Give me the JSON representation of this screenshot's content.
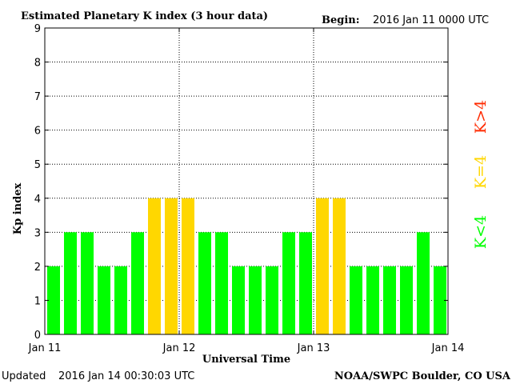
{
  "header": {
    "title": "Estimated Planetary K index (3 hour data)",
    "begin_label": "Begin:",
    "begin_value": "2016 Jan 11 0000 UTC"
  },
  "footer": {
    "updated_label": "Updated",
    "updated_value": "2016 Jan 14 00:30:03 UTC",
    "source": "NOAA/SWPC Boulder, CO USA"
  },
  "legend": {
    "below": "K<4",
    "equal": "K=4",
    "above": "K>4"
  },
  "colors": {
    "below": "#00ff00",
    "equal": "#ffd700",
    "above": "#ff2a00",
    "grid": "#000000"
  },
  "chart_data": {
    "type": "bar",
    "title": "Estimated Planetary K index (3 hour data)",
    "xlabel": "Universal Time",
    "ylabel": "Kp index",
    "ylim": [
      0,
      9
    ],
    "yticks": [
      "0",
      "1",
      "2",
      "3",
      "4",
      "5",
      "6",
      "7",
      "8",
      "9"
    ],
    "xticks": [
      "Jan 11",
      "Jan 12",
      "Jan 13",
      "Jan 14"
    ],
    "grid": true,
    "legend_placement": "right",
    "interval_hours": 3,
    "values": [
      2,
      3,
      3,
      2,
      2,
      3,
      4,
      4,
      4,
      3,
      3,
      2,
      2,
      2,
      3,
      3,
      4,
      4,
      2,
      2,
      2,
      2,
      3,
      2
    ]
  }
}
